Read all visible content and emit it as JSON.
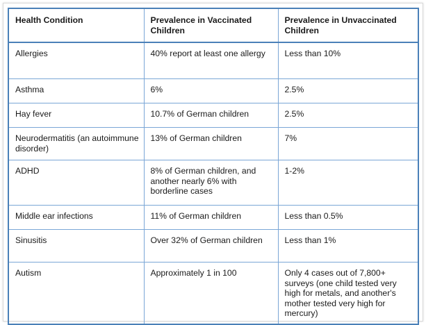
{
  "table": {
    "headers": [
      "Health Condition",
      "Prevalence in Vaccinated Children",
      "Prevalence in Unvaccinated Children"
    ],
    "rows": [
      [
        "Allergies",
        "40% report at least one allergy",
        "Less than 10%"
      ],
      [
        "Asthma",
        "6%",
        "2.5%"
      ],
      [
        "Hay fever",
        "10.7% of German children",
        "2.5%"
      ],
      [
        "Neurodermatitis (an autoimmune disorder)",
        "13% of German children",
        "7%"
      ],
      [
        "ADHD",
        "8% of German children, and another nearly 6% with borderline cases",
        "1-2%"
      ],
      [
        "Middle ear infections",
        "11% of German children",
        "Less than 0.5%"
      ],
      [
        "Sinusitis",
        "Over 32% of German children",
        "Less than 1%"
      ],
      [
        "Autism",
        "Approximately 1 in 100",
        "Only 4 cases out of 7,800+ surveys (one child tested very high for metals, and another's mother tested very high for mercury)"
      ]
    ]
  },
  "colors": {
    "border_outer": "#4a80b8",
    "border_inner": "#7aa6d6",
    "text": "#1a1a1a"
  }
}
